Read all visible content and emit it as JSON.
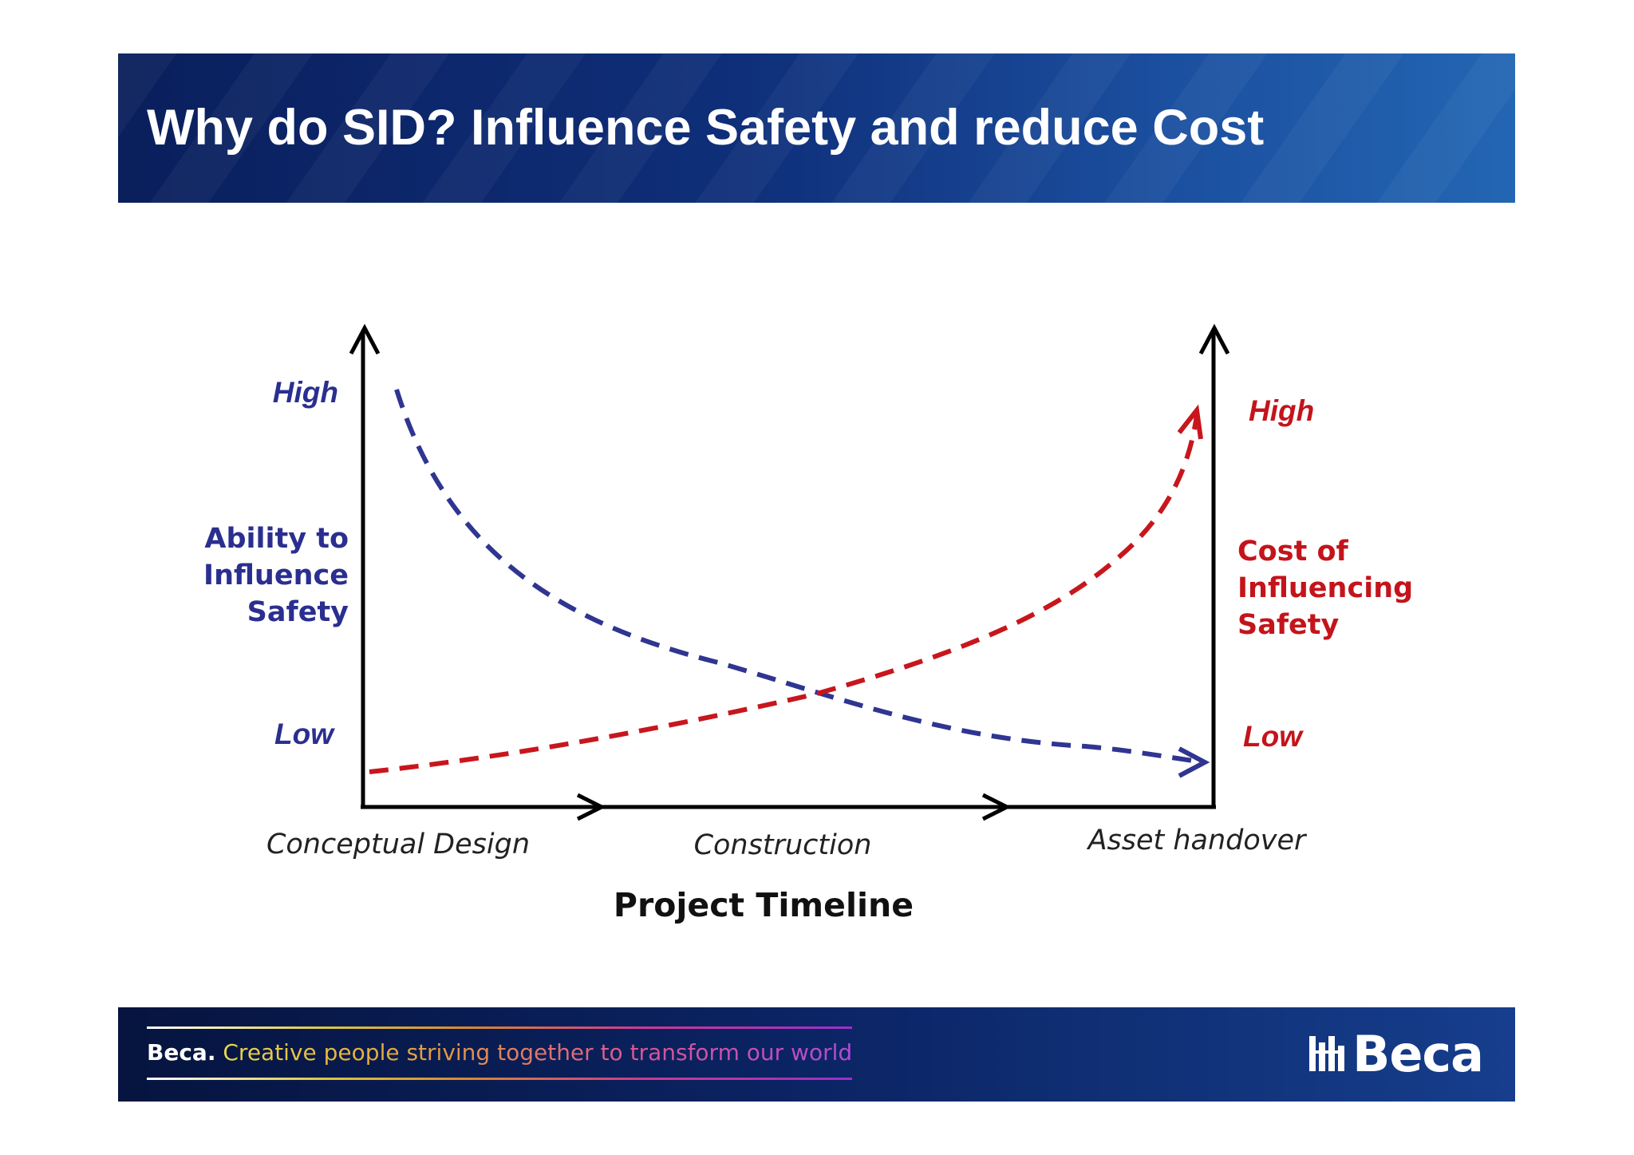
{
  "header": {
    "title": "Why do SID? Influence Safety and reduce Cost"
  },
  "diagram": {
    "left_axis": {
      "high_label": "High",
      "low_label": "Low",
      "title_lines": [
        "Ability to",
        "Influence",
        "Safety"
      ],
      "color": "#2a2f8f"
    },
    "right_axis": {
      "high_label": "High",
      "low_label": "Low",
      "title_lines": [
        "Cost of",
        "Influencing",
        "Safety"
      ],
      "color": "#c4141b"
    },
    "x_axis": {
      "stages": [
        "Conceptual Design",
        "Construction",
        "Asset handover"
      ],
      "title": "Project Timeline"
    },
    "curves": [
      {
        "name": "ability",
        "trend": "decreasing",
        "style": "dashed",
        "color": "#2f3590"
      },
      {
        "name": "cost",
        "trend": "increasing",
        "style": "dashed",
        "color": "#c8161d"
      }
    ]
  },
  "footer": {
    "brand_small": "Beca.",
    "tagline": "Creative people striving together to transform our world",
    "logo_text": "Beca",
    "logo_icon": "beca-mark-icon"
  }
}
